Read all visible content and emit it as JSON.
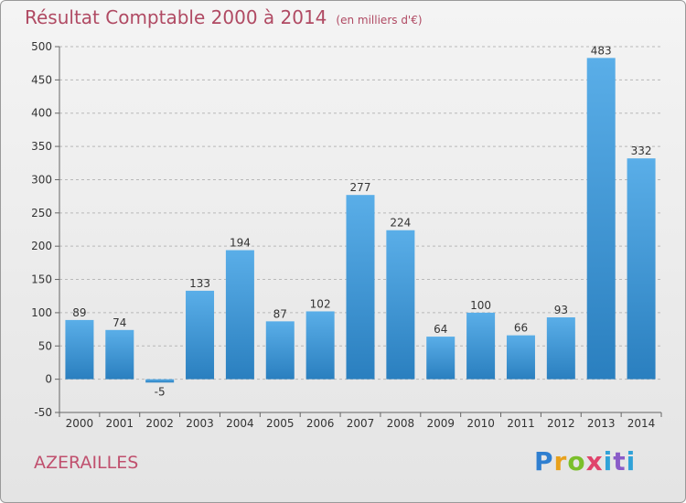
{
  "title": "Résultat Comptable 2000 à 2014",
  "subtitle": "(en milliers d'€)",
  "commune": "AZERAILLES",
  "brand": "Proxiti",
  "colors": {
    "title": "#b04a63",
    "bar_top": "#5aaee8",
    "bar_bottom": "#2a7fbf",
    "grid": "#b8b8b8",
    "axis_text": "#333333"
  },
  "chart_data": {
    "type": "bar",
    "categories": [
      "2000",
      "2001",
      "2002",
      "2003",
      "2004",
      "2005",
      "2006",
      "2007",
      "2008",
      "2009",
      "2010",
      "2011",
      "2012",
      "2013",
      "2014"
    ],
    "values": [
      89,
      74,
      -5,
      133,
      194,
      87,
      102,
      277,
      224,
      64,
      100,
      66,
      93,
      483,
      332
    ],
    "data_labels": [
      "89",
      "74",
      "-5",
      "133",
      "194",
      "87",
      "102",
      "277",
      "224",
      "64",
      "100",
      "66",
      "93",
      "483",
      "332"
    ],
    "yticks": [
      -50,
      0,
      50,
      100,
      150,
      200,
      250,
      300,
      350,
      400,
      450,
      500
    ],
    "ylim": [
      -50,
      500
    ],
    "grid": true,
    "legend": "none"
  }
}
